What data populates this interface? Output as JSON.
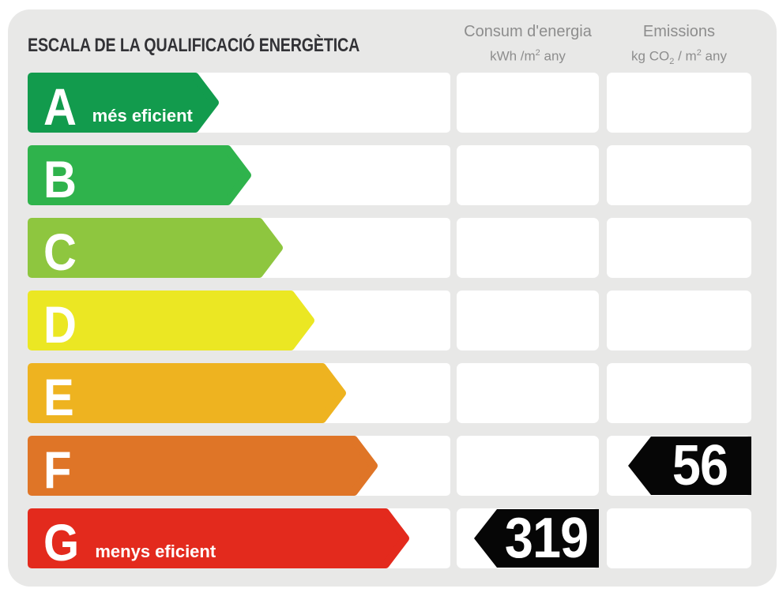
{
  "header": {
    "title": "ESCALA DE LA QUALIFICACIÓ ENERGÈTICA",
    "consum_column": {
      "title": "Consum d'energia",
      "unit_prefix": "kWh /m",
      "unit_sup": "2",
      "unit_suffix": " any"
    },
    "emissions_column": {
      "title": "Emissions",
      "unit_prefix": "kg CO",
      "unit_sub": "2",
      "unit_mid": " / m",
      "unit_sup": "2",
      "unit_suffix": " any"
    }
  },
  "scale": {
    "indicator_color": "#060606",
    "rows": [
      {
        "grade": "A",
        "sublabel": "més eficient",
        "color": "#129b4d",
        "arrow_width": 242,
        "consum_value": null,
        "emissions_value": null
      },
      {
        "grade": "B",
        "sublabel": null,
        "color": "#2fb34c",
        "arrow_width": 283,
        "consum_value": null,
        "emissions_value": null
      },
      {
        "grade": "C",
        "sublabel": null,
        "color": "#8ec63f",
        "arrow_width": 323,
        "consum_value": null,
        "emissions_value": null
      },
      {
        "grade": "D",
        "sublabel": null,
        "color": "#ebe723",
        "arrow_width": 363,
        "consum_value": null,
        "emissions_value": null
      },
      {
        "grade": "E",
        "sublabel": null,
        "color": "#eeb320",
        "arrow_width": 403,
        "consum_value": null,
        "emissions_value": null
      },
      {
        "grade": "F",
        "sublabel": null,
        "color": "#df7527",
        "arrow_width": 443,
        "consum_value": null,
        "emissions_value": "56"
      },
      {
        "grade": "G",
        "sublabel": "menys eficient",
        "color": "#e32a1d",
        "arrow_width": 483,
        "consum_value": "319",
        "emissions_value": null
      }
    ]
  },
  "chart_data": {
    "type": "bar",
    "title": "ESCALA DE LA QUALIFICACIÓ ENERGÈTICA",
    "categories": [
      "A",
      "B",
      "C",
      "D",
      "E",
      "F",
      "G"
    ],
    "category_colors": [
      "#129b4d",
      "#2fb34c",
      "#8ec63f",
      "#ebe723",
      "#eeb320",
      "#df7527",
      "#e32a1d"
    ],
    "series": [
      {
        "name": "Consum d'energia (kWh/m2 any)",
        "values": [
          null,
          null,
          null,
          null,
          null,
          null,
          319
        ]
      },
      {
        "name": "Emissions (kg CO2/m2 any)",
        "values": [
          null,
          null,
          null,
          null,
          null,
          56,
          null
        ]
      }
    ],
    "annotations": [
      "A = més eficient",
      "G = menys eficient",
      "Consum d'energia: 319 kWh/m2 any → lletra G",
      "Emissions: 56 kg CO2/m2 any → lletra F"
    ],
    "legend_position": "top",
    "grid": false
  }
}
